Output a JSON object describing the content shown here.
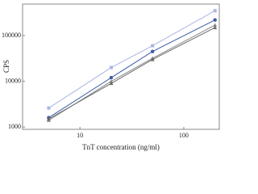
{
  "chart_data": {
    "type": "line",
    "x_label": "TnT concentration (ng/ml)",
    "y_label": "CPS",
    "x_log": true,
    "y_log": true,
    "xlim": [
      2.8,
      220
    ],
    "ylim": [
      890,
      490000
    ],
    "xticks": [
      10,
      100
    ],
    "yticks": [
      1000,
      10000,
      100000
    ],
    "x": [
      5,
      20,
      50,
      200
    ],
    "series": [
      {
        "color": "#a9b4e2",
        "marker": "square",
        "values": [
          2600,
          20000,
          60000,
          350000
        ]
      },
      {
        "color": "#3b5ba5",
        "marker": "circle",
        "values": [
          1600,
          12000,
          45000,
          220000
        ]
      },
      {
        "color": "#8a8a8a",
        "marker": "triangle",
        "values": [
          1400,
          10000,
          32000,
          170000
        ]
      },
      {
        "color": "#6a6a6a",
        "marker": "triangle",
        "values": [
          1500,
          9000,
          30000,
          150000
        ]
      }
    ]
  }
}
